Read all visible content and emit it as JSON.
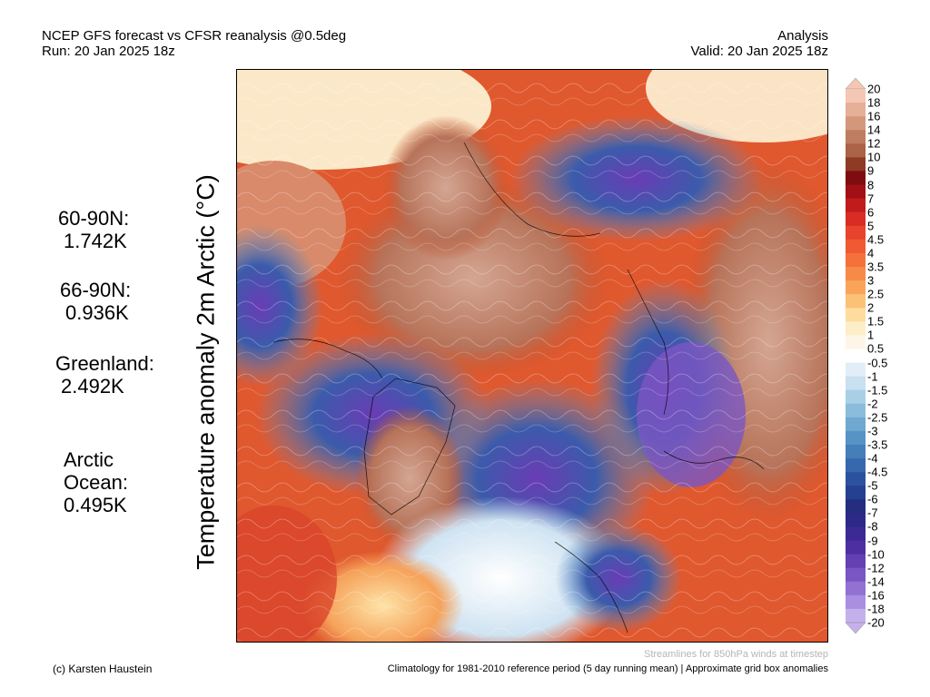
{
  "header": {
    "title_line1": "NCEP GFS forecast vs CFSR reanalysis @0.5deg",
    "title_line2": "Run: 20 Jan 2025 18z",
    "mode": "Analysis",
    "valid": "Valid: 20 Jan 2025 18z"
  },
  "side_title": "Temperature anomaly 2m Arctic (°C)",
  "stats": [
    {
      "label": "60-90N:",
      "value": "1.742K"
    },
    {
      "label": "66-90N:",
      "value": "0.936K"
    },
    {
      "label": "Greenland:",
      "value": "2.492K"
    },
    {
      "label": "Arctic\nOcean:",
      "value": "0.495K"
    }
  ],
  "colorbar": {
    "labels": [
      "20",
      "18",
      "16",
      "14",
      "12",
      "10",
      "9",
      "8",
      "7",
      "6",
      "5",
      "4.5",
      "4",
      "3.5",
      "3",
      "2.5",
      "2",
      "1.5",
      "1",
      "0.5",
      "-0.5",
      "-1",
      "-1.5",
      "-2",
      "-2.5",
      "-3",
      "-3.5",
      "-4",
      "-4.5",
      "-5",
      "-6",
      "-7",
      "-8",
      "-9",
      "-10",
      "-12",
      "-14",
      "-16",
      "-18",
      "-20"
    ],
    "colors": [
      "#f3c7b3",
      "#e6af98",
      "#d3987c",
      "#bf7d5f",
      "#aa6347",
      "#8f3a24",
      "#7e0c10",
      "#a20f14",
      "#c01c1c",
      "#d82c25",
      "#e8432c",
      "#f05a32",
      "#f5713b",
      "#f78a47",
      "#f9a559",
      "#fbc177",
      "#fddc9d",
      "#fdeec7",
      "#fdf6e6",
      "#ffffff",
      "#e2eef7",
      "#c8e0f0",
      "#a9cfe6",
      "#8abddc",
      "#6fa9d2",
      "#5893c6",
      "#467eba",
      "#3768ad",
      "#2c529f",
      "#25408f",
      "#252d7f",
      "#2c2a86",
      "#3b2a93",
      "#4e2fa2",
      "#6440b3",
      "#7a56c3",
      "#9171d2",
      "#aa8fe0",
      "#c4b1ec"
    ],
    "top_arrow_color": "#f3c7b3",
    "bottom_arrow_color": "#c4b1ec"
  },
  "footer": {
    "note": "Streamlines for 850hPa winds at timestep",
    "credit": "(c) Karsten Haustein",
    "climatology": "Climatology for 1981-2010 reference period (5 day running mean) | Approximate grid box anomalies"
  }
}
